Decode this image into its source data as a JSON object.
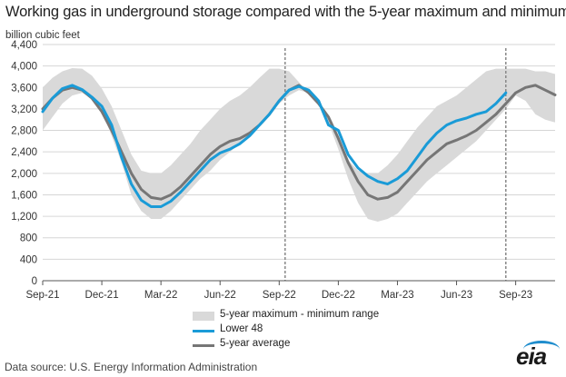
{
  "chart_data": {
    "type": "area",
    "title": "Working gas in underground  storage compared with the 5-year maximum and minimum",
    "ylabel": "billion cubic feet",
    "xlabel": "",
    "ylim": [
      0,
      4400
    ],
    "yticks": [
      "0",
      "400",
      "800",
      "1,200",
      "1,600",
      "2,000",
      "2,400",
      "2,800",
      "3,200",
      "3,600",
      "4,000",
      "4,400"
    ],
    "ytick_values": [
      0,
      400,
      800,
      1200,
      1600,
      2000,
      2400,
      2800,
      3200,
      3600,
      4000,
      4400
    ],
    "xlim": [
      0,
      26
    ],
    "xticks": [
      "Sep-21",
      "Dec-21",
      "Mar-22",
      "Jun-22",
      "Sep-22",
      "Dec-22",
      "Mar-23",
      "Jun-23",
      "Sep-23"
    ],
    "xtick_values": [
      0,
      3,
      6,
      9,
      12,
      15,
      18,
      21,
      24
    ],
    "reference_lines_x": [
      12.3,
      23.5
    ],
    "x": [
      0,
      0.5,
      1,
      1.5,
      2,
      2.5,
      3,
      3.5,
      4,
      4.5,
      5,
      5.5,
      6,
      6.5,
      7,
      7.5,
      8,
      8.5,
      9,
      9.5,
      10,
      10.5,
      11,
      11.5,
      12,
      12.5,
      13,
      13.5,
      14,
      14.5,
      15,
      15.5,
      16,
      16.5,
      17,
      17.5,
      18,
      18.5,
      19,
      19.5,
      20,
      20.5,
      21,
      21.5,
      22,
      22.5,
      23,
      23.5,
      24,
      24.5,
      25,
      25.5,
      26
    ],
    "series": [
      {
        "name": "5-year maximum - minimum range",
        "color": "#d9d9d9",
        "upper": [
          3600,
          3780,
          3900,
          3960,
          3950,
          3820,
          3580,
          3250,
          2800,
          2350,
          2050,
          2000,
          2000,
          2150,
          2350,
          2550,
          2800,
          3000,
          3200,
          3350,
          3450,
          3600,
          3780,
          3950,
          3950,
          3900,
          3700,
          3500,
          3300,
          3000,
          2600,
          2250,
          2050,
          2000,
          2000,
          2150,
          2350,
          2600,
          2850,
          3050,
          3250,
          3350,
          3450,
          3600,
          3750,
          3900,
          3950,
          3950,
          3950,
          3950,
          3900,
          3900,
          3850
        ],
        "lower": [
          2800,
          3050,
          3300,
          3450,
          3500,
          3400,
          3150,
          2700,
          2200,
          1600,
          1300,
          1150,
          1150,
          1300,
          1500,
          1700,
          1900,
          2050,
          2250,
          2400,
          2550,
          2700,
          2900,
          3100,
          3300,
          3450,
          3550,
          3500,
          3300,
          2950,
          2450,
          1900,
          1450,
          1150,
          1100,
          1150,
          1250,
          1450,
          1650,
          1850,
          2000,
          2150,
          2300,
          2450,
          2600,
          2800,
          3000,
          3200,
          3450,
          3350,
          3100,
          3000,
          2950
        ]
      },
      {
        "name": "Lower 48",
        "color": "#1a9bd7",
        "values": [
          3150,
          3400,
          3580,
          3640,
          3560,
          3420,
          3250,
          2900,
          2300,
          1800,
          1500,
          1380,
          1380,
          1480,
          1650,
          1850,
          2050,
          2250,
          2380,
          2450,
          2550,
          2700,
          2900,
          3100,
          3350,
          3550,
          3620,
          3550,
          3350,
          2900,
          2800,
          2350,
          2100,
          1950,
          1850,
          1800,
          1900,
          2050,
          2300,
          2550,
          2750,
          2900,
          2980,
          3030,
          3100,
          3150,
          3300,
          3500,
          null,
          null,
          null,
          null,
          null
        ]
      },
      {
        "name": "5-year average",
        "color": "#767676",
        "values": [
          3200,
          3400,
          3550,
          3600,
          3550,
          3400,
          3150,
          2800,
          2400,
          2000,
          1700,
          1550,
          1520,
          1600,
          1750,
          1950,
          2150,
          2350,
          2500,
          2600,
          2650,
          2750,
          2900,
          3100,
          3350,
          3550,
          3640,
          3500,
          3300,
          3050,
          2650,
          2200,
          1850,
          1600,
          1520,
          1550,
          1650,
          1850,
          2050,
          2250,
          2400,
          2550,
          2620,
          2700,
          2800,
          2950,
          3100,
          3300,
          3500,
          3600,
          3640,
          3550,
          3460
        ]
      }
    ],
    "legend": [
      "5-year maximum - minimum range",
      "Lower 48",
      "5-year average"
    ],
    "legend_position": "bottom-center"
  },
  "source_text": "Data source:  U.S. Energy Information Administration",
  "logo_text": "eia"
}
